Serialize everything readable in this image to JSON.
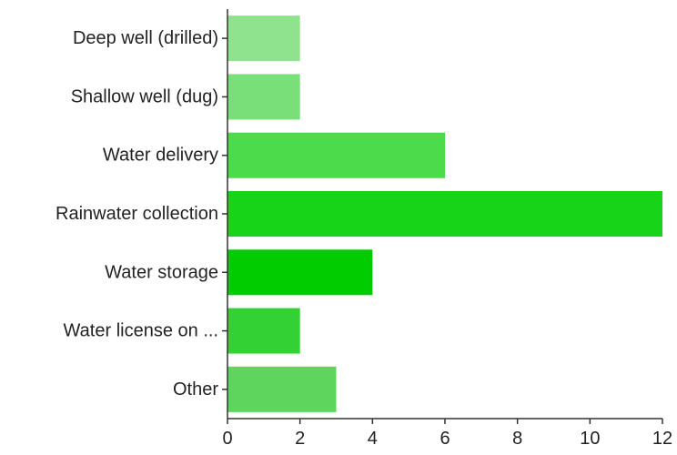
{
  "chart_data": {
    "type": "bar",
    "orientation": "horizontal",
    "categories": [
      "Deep well (drilled)",
      "Shallow well (dug)",
      "Water delivery",
      "Rainwater collection",
      "Water storage",
      "Water license on ...",
      "Other"
    ],
    "values": [
      2,
      2,
      6,
      12,
      4,
      2,
      3
    ],
    "bar_colors": [
      "#8fe38f",
      "#79df79",
      "#4bdb4b",
      "#18d418",
      "#00cc00",
      "#33d133",
      "#5ed65e"
    ],
    "title": "",
    "xlabel": "",
    "ylabel": "",
    "xlim": [
      0,
      12
    ],
    "xticks": [
      0,
      2,
      4,
      6,
      8,
      10,
      12
    ],
    "grid": false,
    "legend": "none"
  }
}
